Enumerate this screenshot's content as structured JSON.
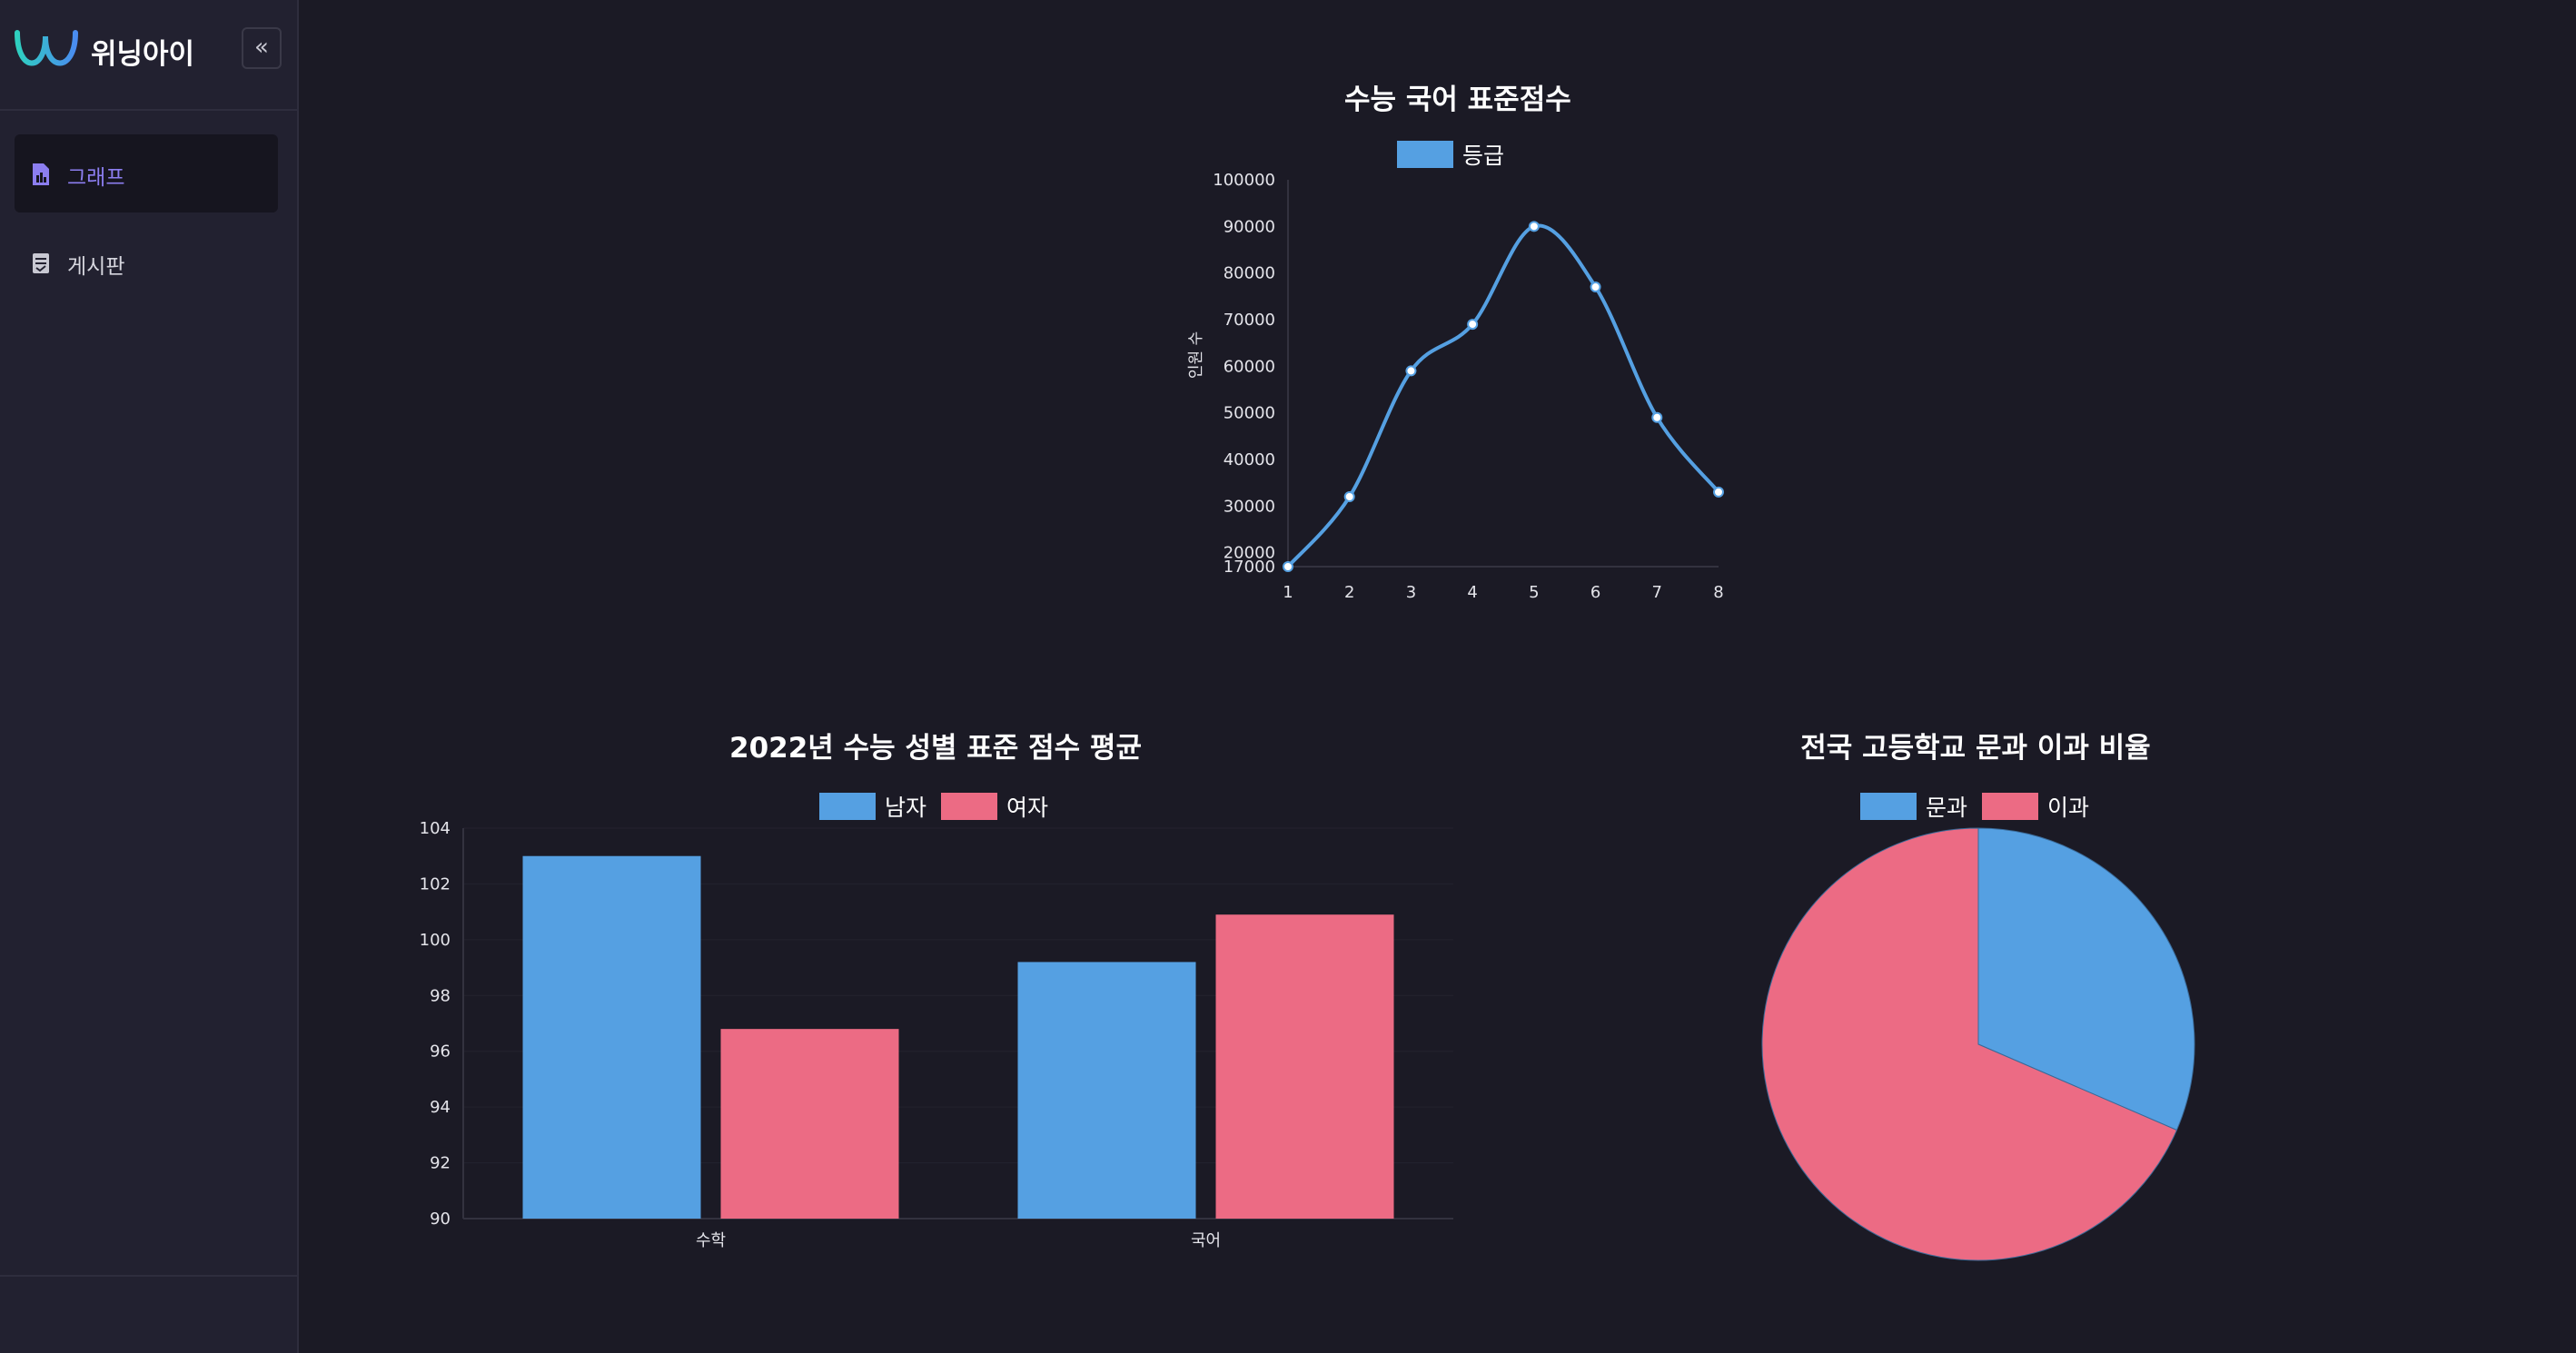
{
  "app": {
    "brand_name": "위닝아이",
    "collapse_symbol": "«",
    "logo_icon": "wave-logo-icon"
  },
  "sidebar": {
    "items": [
      {
        "label": "그래프",
        "icon": "chart-file-icon",
        "active": true
      },
      {
        "label": "게시판",
        "icon": "board-icon",
        "active": false
      }
    ]
  },
  "colors": {
    "blue": "#55a0e2",
    "pink": "#ec6b84",
    "active_nav": "#8c7ef0"
  },
  "chart_data": [
    {
      "type": "line",
      "title": "수능 국어 표준점수",
      "series": [
        {
          "name": "등급",
          "values": [
            17000,
            32000,
            59000,
            69000,
            90000,
            77000,
            49000,
            33000
          ]
        }
      ],
      "x": [
        1,
        2,
        3,
        4,
        5,
        6,
        7,
        8
      ],
      "ylabel": "인원 수",
      "yticks": [
        17000,
        20000,
        30000,
        40000,
        50000,
        60000,
        70000,
        80000,
        90000,
        100000
      ],
      "ylim": [
        17000,
        100000
      ],
      "legend": "top",
      "smooth": true
    },
    {
      "type": "bar",
      "title": "2022년 수능 성별 표준 점수 평균",
      "categories": [
        "수학",
        "국어"
      ],
      "series": [
        {
          "name": "남자",
          "values": [
            103,
            99.2
          ]
        },
        {
          "name": "여자",
          "values": [
            96.8,
            100.9
          ]
        }
      ],
      "yticks": [
        90,
        92,
        94,
        96,
        98,
        100,
        102,
        104
      ],
      "ylim": [
        90,
        104
      ],
      "legend": "top"
    },
    {
      "type": "pie",
      "title": "전국 고등학교 문과 이과 비율",
      "labels": [
        "문과",
        "이과"
      ],
      "values": [
        31.5,
        68.5
      ],
      "legend": "top"
    }
  ]
}
